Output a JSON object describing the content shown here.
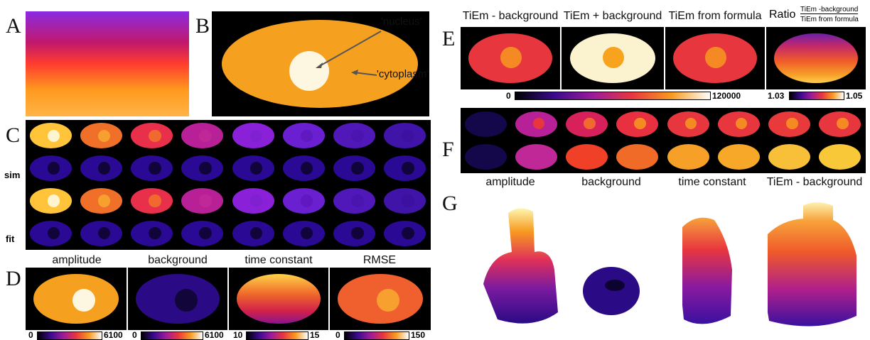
{
  "panels": {
    "A": "A",
    "B": "B",
    "C": "C",
    "D": "D",
    "E": "E",
    "F": "F",
    "G": "G"
  },
  "panelB": {
    "nucleus_label": "'nucleus'",
    "cytoplasm_label": "'cytoplasm'"
  },
  "panelC": {
    "row_labels": [
      "sim",
      "fit"
    ]
  },
  "panelD": {
    "headers": [
      "amplitude",
      "background",
      "time constant",
      "RMSE"
    ],
    "scales": [
      [
        "0",
        "6100"
      ],
      [
        "0",
        "6100"
      ],
      [
        "10",
        "15"
      ],
      [
        "0",
        "150"
      ]
    ]
  },
  "panelE": {
    "headers": [
      "TiEm - background",
      "TiEm + background",
      "TiEm from formula"
    ],
    "ratio_label": "Ratio",
    "ratio_num": "TiEm -background",
    "ratio_den": "TiEm from formula",
    "scale_main": [
      "0",
      "120000"
    ],
    "scale_ratio": [
      "1.03",
      "1.05"
    ]
  },
  "panelF": {
    "labels": [
      "amplitude",
      "background",
      "time constant",
      "TiEm - background"
    ]
  },
  "colors": {
    "inferno_like": "#e8363f",
    "bg_black": "#000000"
  }
}
